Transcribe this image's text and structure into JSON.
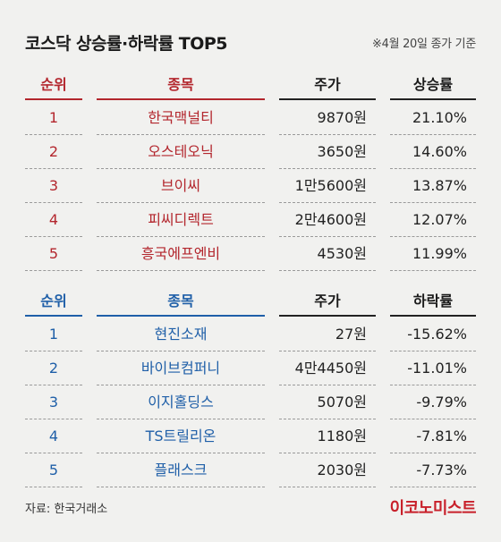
{
  "header": {
    "title": "코스닥 상승률·하락률 TOP5",
    "date_note": "※4월 20일 종가 기준"
  },
  "gainers": {
    "columns": [
      "순위",
      "종목",
      "주가",
      "상승률"
    ],
    "rows": [
      {
        "rank": "1",
        "name": "한국맥널티",
        "price": "9870원",
        "change": "21.10%"
      },
      {
        "rank": "2",
        "name": "오스테오닉",
        "price": "3650원",
        "change": "14.60%"
      },
      {
        "rank": "3",
        "name": "브이씨",
        "price": "1만5600원",
        "change": "13.87%"
      },
      {
        "rank": "4",
        "name": "피씨디렉트",
        "price": "2만4600원",
        "change": "12.07%"
      },
      {
        "rank": "5",
        "name": "흥국에프엔비",
        "price": "4530원",
        "change": "11.99%"
      }
    ]
  },
  "losers": {
    "columns": [
      "순위",
      "종목",
      "주가",
      "하락률"
    ],
    "rows": [
      {
        "rank": "1",
        "name": "현진소재",
        "price": "27원",
        "change": "-15.62%"
      },
      {
        "rank": "2",
        "name": "바이브컴퍼니",
        "price": "4만4450원",
        "change": "-11.01%"
      },
      {
        "rank": "3",
        "name": "이지홀딩스",
        "price": "5070원",
        "change": "-9.79%"
      },
      {
        "rank": "4",
        "name": "TS트릴리온",
        "price": "1180원",
        "change": "-7.81%"
      },
      {
        "rank": "5",
        "name": "플래스크",
        "price": "2030원",
        "change": "-7.73%"
      }
    ]
  },
  "footer": {
    "source": "자료: 한국거래소",
    "logo": "이코노미스트"
  },
  "colors": {
    "gain": "#b3262d",
    "loss": "#1f5fa8",
    "background": "#f1f1ef"
  }
}
